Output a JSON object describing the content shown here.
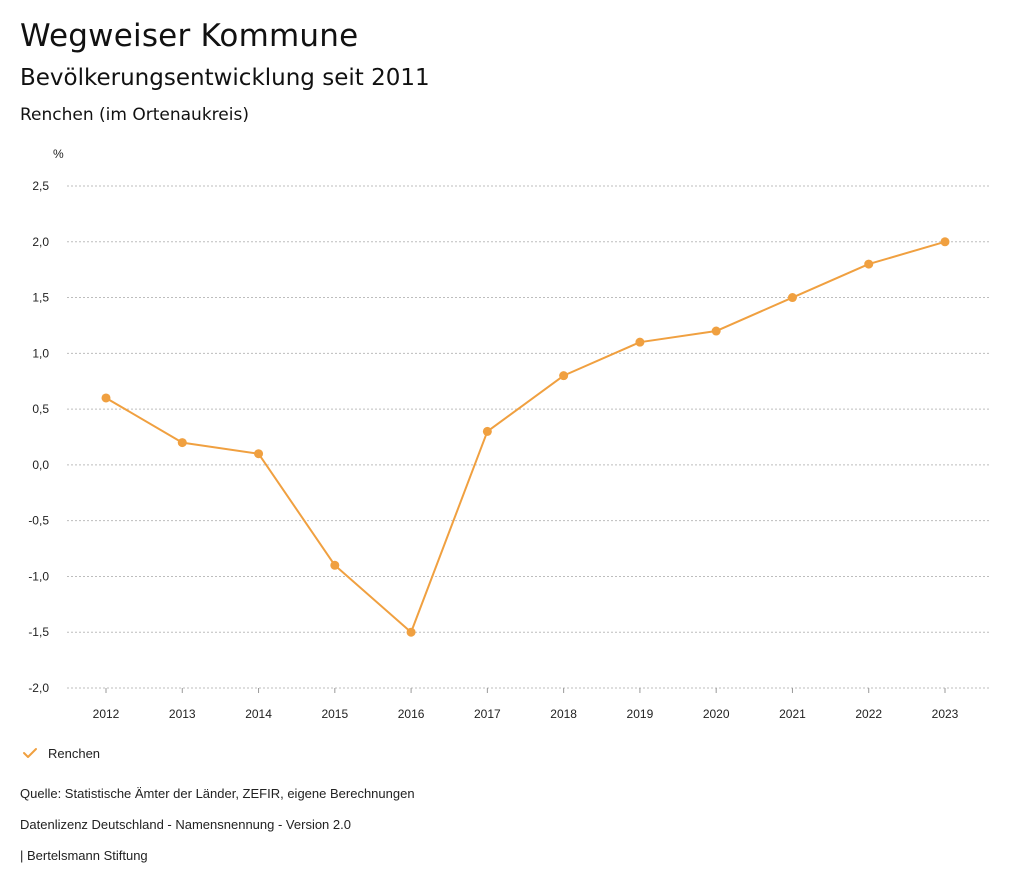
{
  "header": {
    "title": "Wegweiser Kommune",
    "subtitle": "Bevölkerungsentwicklung seit 2011",
    "region": "Renchen (im Ortenaukreis)"
  },
  "legend": {
    "label": "Renchen"
  },
  "footer": {
    "source": "Quelle: Statistische Ämter der Länder, ZEFIR, eigene Berechnungen",
    "license": "Datenlizenz Deutschland - Namensnennung - Version 2.0",
    "brand": "| Bertelsmann Stiftung"
  },
  "colors": {
    "series": "#F0A040",
    "grid": "#BDBDBD",
    "text": "#111111"
  },
  "chart_data": {
    "type": "line",
    "title": "Bevölkerungsentwicklung seit 2011",
    "xlabel": "",
    "ylabel": "%",
    "ylim": [
      -2.0,
      2.5
    ],
    "y_ticks": [
      2.5,
      2.0,
      1.5,
      1.0,
      0.5,
      0.0,
      -0.5,
      -1.0,
      -1.5,
      -2.0
    ],
    "y_tick_labels": [
      "2,5",
      "2,0",
      "1,5",
      "1,0",
      "0,5",
      "0,0",
      "-0,5",
      "-1,0",
      "-1,5",
      "-2,0"
    ],
    "categories": [
      "2012",
      "2013",
      "2014",
      "2015",
      "2016",
      "2017",
      "2018",
      "2019",
      "2020",
      "2021",
      "2022",
      "2023"
    ],
    "series": [
      {
        "name": "Renchen",
        "values": [
          0.6,
          0.2,
          0.1,
          -0.9,
          -1.5,
          0.3,
          0.8,
          1.1,
          1.2,
          1.5,
          1.8,
          2.0
        ]
      }
    ],
    "grid": true,
    "legend_position": "bottom-left"
  }
}
